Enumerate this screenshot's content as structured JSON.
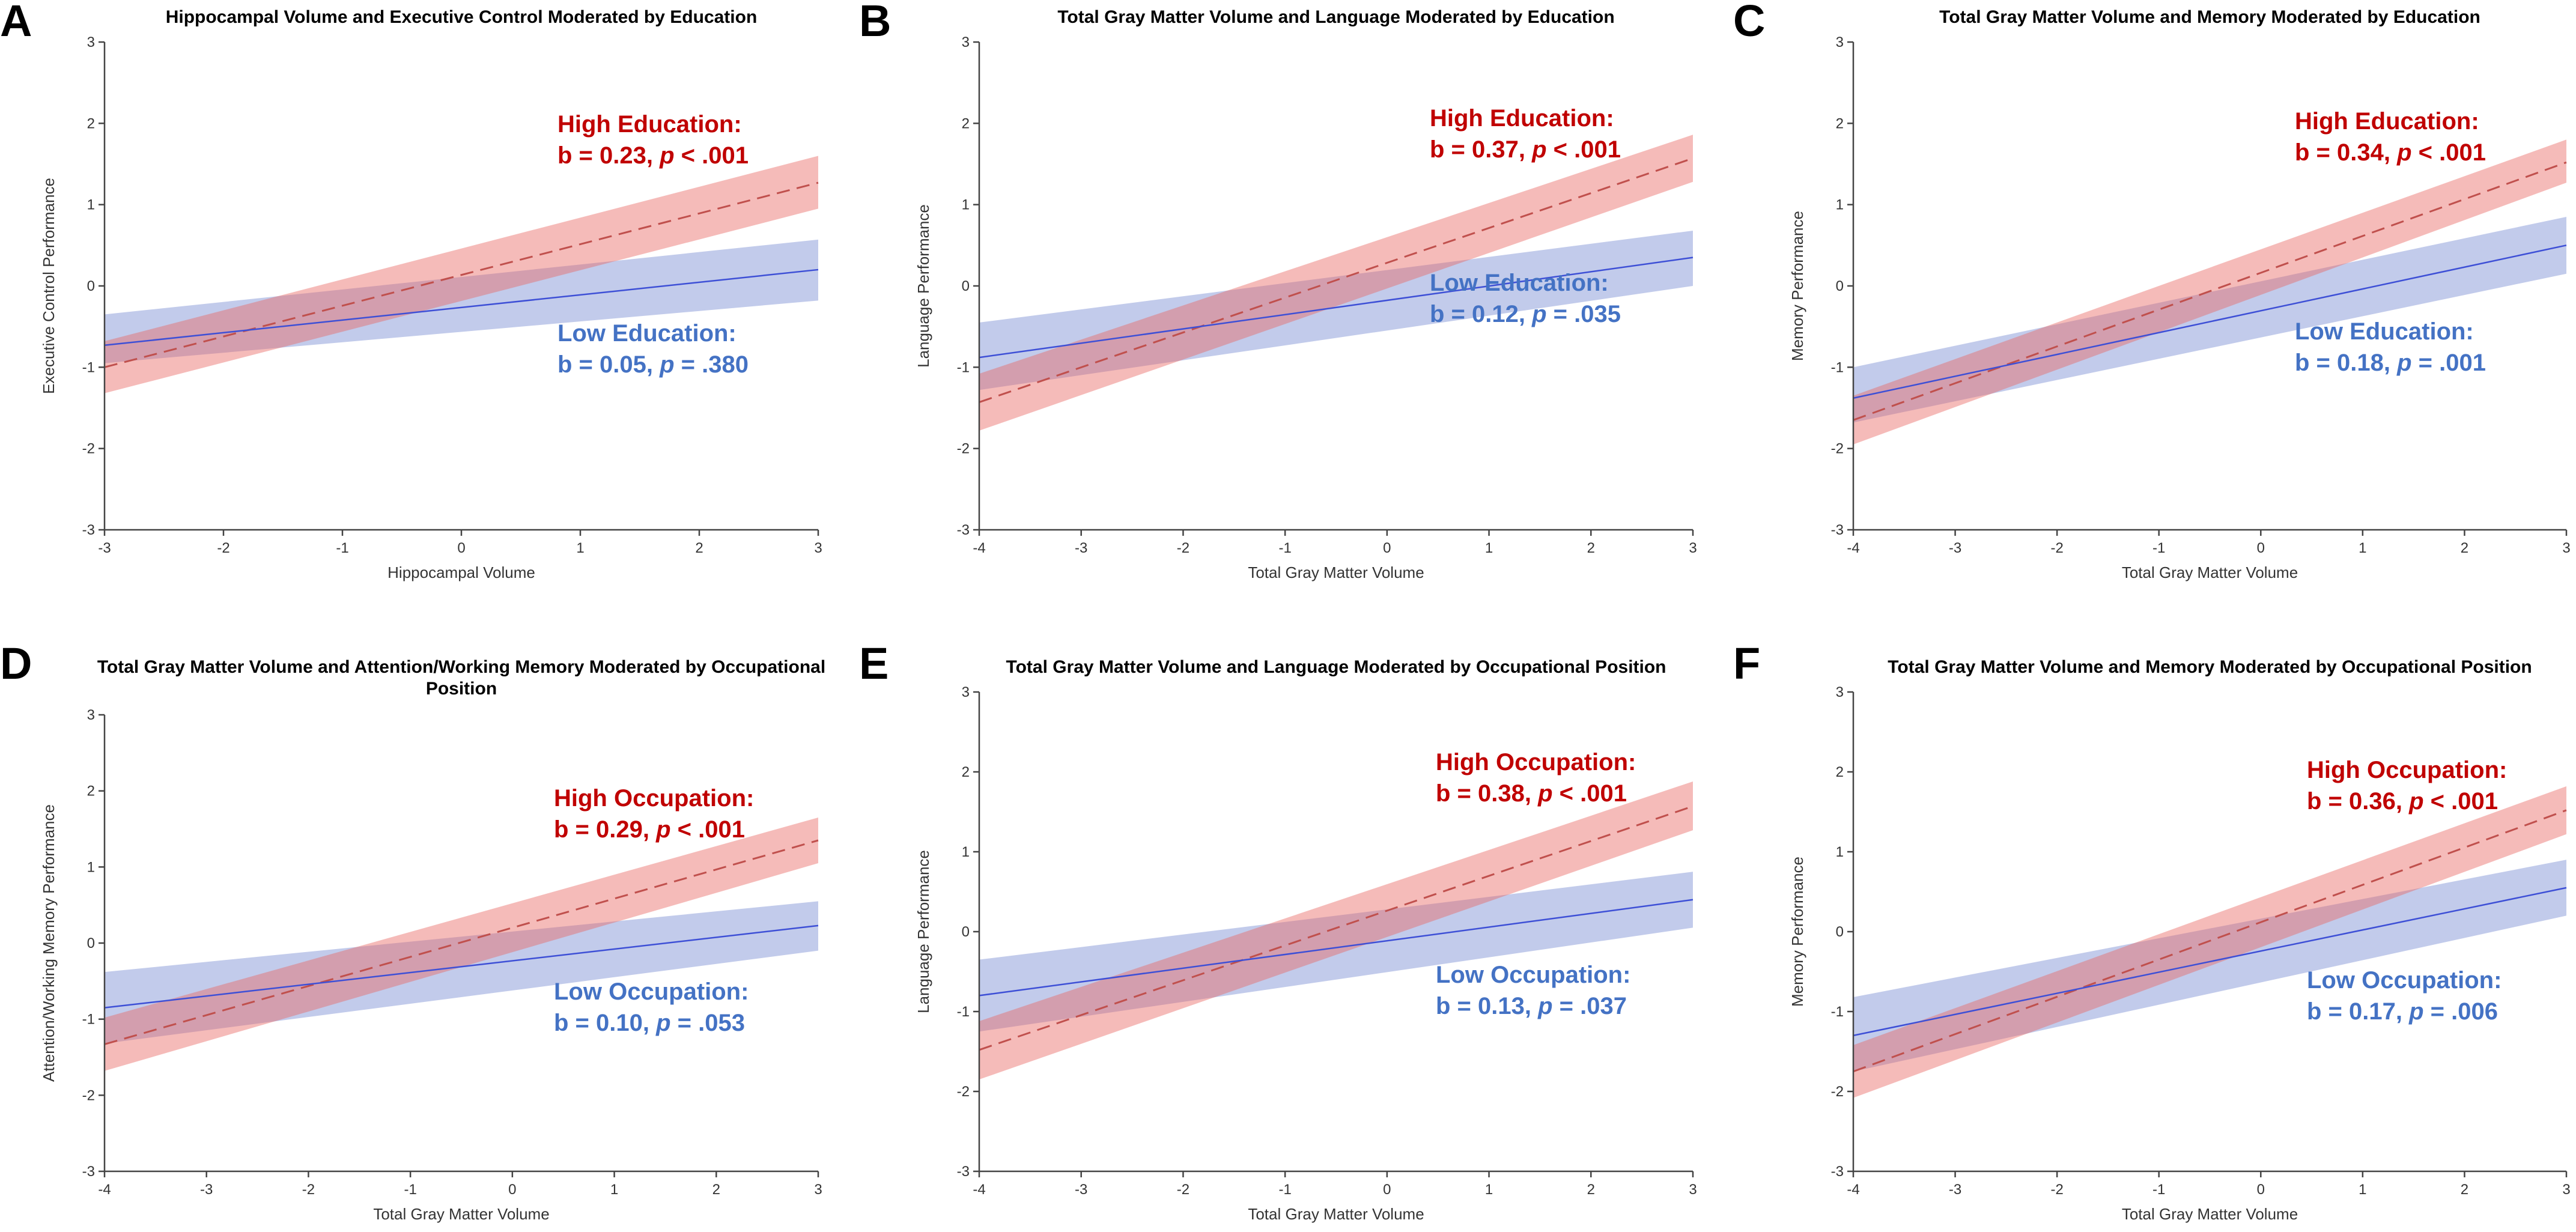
{
  "colors": {
    "high": "#c00000",
    "low": "#4472c4",
    "high_band": "#e86964",
    "low_band": "#788cd2"
  },
  "chart_data": [
    {
      "type": "line",
      "panel": "A",
      "title": [
        "Hippocampal Volume and Executive Control Moderated by Education"
      ],
      "xlabel": "Hippocampal Volume",
      "ylabel": "Executive Control Performance",
      "xlim": [
        -3,
        3
      ],
      "ylim": [
        -3,
        3
      ],
      "xticks": [
        -3,
        -2,
        -1,
        0,
        1,
        2,
        3
      ],
      "yticks": [
        -3,
        -2,
        -1,
        0,
        1,
        2,
        3
      ],
      "series": [
        {
          "name": "High Education",
          "x": [
            -3,
            3
          ],
          "y": [
            -1.0,
            1.27
          ],
          "band": [
            [
              -1.32,
              -0.68
            ],
            [
              0.95,
              1.6
            ]
          ]
        },
        {
          "name": "Low Education",
          "x": [
            -3,
            3
          ],
          "y": [
            -0.73,
            0.2
          ],
          "band": [
            [
              -0.95,
              -0.35
            ],
            [
              -0.18,
              0.57
            ]
          ]
        }
      ],
      "annotations": {
        "high_label": "High Education:",
        "high_b": "b = 0.23, ",
        "high_p": "p",
        "high_tail": " < .001",
        "low_label": "Low Education:",
        "low_b": "b = 0.05, ",
        "low_p": "p",
        "low_tail": " = .380"
      }
    },
    {
      "type": "line",
      "panel": "B",
      "title": [
        "Total Gray Matter Volume and Language Moderated by Education"
      ],
      "xlabel": "Total Gray Matter Volume",
      "ylabel": "Language Performance",
      "xlim": [
        -4,
        3
      ],
      "ylim": [
        -3,
        3
      ],
      "xticks": [
        -4,
        -3,
        -2,
        -1,
        0,
        1,
        2,
        3
      ],
      "yticks": [
        -3,
        -2,
        -1,
        0,
        1,
        2,
        3
      ],
      "series": [
        {
          "name": "High Education",
          "x": [
            -4,
            3
          ],
          "y": [
            -1.43,
            1.57
          ],
          "band": [
            [
              -1.78,
              -1.08
            ],
            [
              1.28,
              1.86
            ]
          ]
        },
        {
          "name": "Low Education",
          "x": [
            -4,
            3
          ],
          "y": [
            -0.88,
            0.35
          ],
          "band": [
            [
              -1.28,
              -0.45
            ],
            [
              0.0,
              0.68
            ]
          ]
        }
      ],
      "annotations": {
        "high_label": "High Education:",
        "high_b": "b = 0.37, ",
        "high_p": "p",
        "high_tail": " < .001",
        "low_label": "Low Education:",
        "low_b": "b = 0.12, ",
        "low_p": "p",
        "low_tail": " = .035"
      }
    },
    {
      "type": "line",
      "panel": "C",
      "title": [
        "Total Gray Matter Volume and Memory Moderated by Education"
      ],
      "xlabel": "Total Gray Matter Volume",
      "ylabel": "Memory Performance",
      "xlim": [
        -4,
        3
      ],
      "ylim": [
        -3,
        3
      ],
      "xticks": [
        -4,
        -3,
        -2,
        -1,
        0,
        1,
        2,
        3
      ],
      "yticks": [
        -3,
        -2,
        -1,
        0,
        1,
        2,
        3
      ],
      "series": [
        {
          "name": "High Education",
          "x": [
            -4,
            3
          ],
          "y": [
            -1.65,
            1.52
          ],
          "band": [
            [
              -1.95,
              -1.35
            ],
            [
              1.27,
              1.8
            ]
          ]
        },
        {
          "name": "Low Education",
          "x": [
            -4,
            3
          ],
          "y": [
            -1.38,
            0.5
          ],
          "band": [
            [
              -1.68,
              -1.0
            ],
            [
              0.15,
              0.85
            ]
          ]
        }
      ],
      "annotations": {
        "high_label": "High Education:",
        "high_b": "b = 0.34, ",
        "high_p": "p",
        "high_tail": " < .001",
        "low_label": "Low Education:",
        "low_b": "b = 0.18, ",
        "low_p": "p",
        "low_tail": " = .001"
      }
    },
    {
      "type": "line",
      "panel": "D",
      "title": [
        "Total Gray Matter Volume and Attention/Working Memory Moderated by Occupational",
        "Position"
      ],
      "xlabel": "Total Gray Matter Volume",
      "ylabel": "Attention/Working Memory Performance",
      "xlim": [
        -4,
        3
      ],
      "ylim": [
        -3,
        3
      ],
      "xticks": [
        -4,
        -3,
        -2,
        -1,
        0,
        1,
        2,
        3
      ],
      "yticks": [
        -3,
        -2,
        -1,
        0,
        1,
        2,
        3
      ],
      "series": [
        {
          "name": "High Occupation",
          "x": [
            -4,
            3
          ],
          "y": [
            -1.33,
            1.35
          ],
          "band": [
            [
              -1.68,
              -0.98
            ],
            [
              1.05,
              1.65
            ]
          ]
        },
        {
          "name": "Low Occupation",
          "x": [
            -4,
            3
          ],
          "y": [
            -0.85,
            0.23
          ],
          "band": [
            [
              -1.32,
              -0.38
            ],
            [
              -0.1,
              0.55
            ]
          ]
        }
      ],
      "annotations": {
        "high_label": "High Occupation:",
        "high_b": "b = 0.29, ",
        "high_p": "p",
        "high_tail": " < .001",
        "low_label": "Low Occupation:",
        "low_b": "b = 0.10, ",
        "low_p": "p",
        "low_tail": " = .053"
      }
    },
    {
      "type": "line",
      "panel": "E",
      "title": [
        "Total Gray Matter Volume and Language Moderated by Occupational Position"
      ],
      "xlabel": "Total Gray Matter Volume",
      "ylabel": "Language Performance",
      "xlim": [
        -4,
        3
      ],
      "ylim": [
        -3,
        3
      ],
      "xticks": [
        -4,
        -3,
        -2,
        -1,
        0,
        1,
        2,
        3
      ],
      "yticks": [
        -3,
        -2,
        -1,
        0,
        1,
        2,
        3
      ],
      "series": [
        {
          "name": "High Occupation",
          "x": [
            -4,
            3
          ],
          "y": [
            -1.48,
            1.57
          ],
          "band": [
            [
              -1.85,
              -1.12
            ],
            [
              1.27,
              1.88
            ]
          ]
        },
        {
          "name": "Low Occupation",
          "x": [
            -4,
            3
          ],
          "y": [
            -0.8,
            0.4
          ],
          "band": [
            [
              -1.25,
              -0.35
            ],
            [
              0.05,
              0.75
            ]
          ]
        }
      ],
      "annotations": {
        "high_label": "High Occupation:",
        "high_b": "b = 0.38, ",
        "high_p": "p",
        "high_tail": " < .001",
        "low_label": "Low Occupation:",
        "low_b": "b = 0.13, ",
        "low_p": "p",
        "low_tail": " = .037"
      }
    },
    {
      "type": "line",
      "panel": "F",
      "title": [
        "Total Gray Matter Volume and Memory Moderated by Occupational Position"
      ],
      "xlabel": "Total Gray Matter Volume",
      "ylabel": "Memory Performance",
      "xlim": [
        -4,
        3
      ],
      "ylim": [
        -3,
        3
      ],
      "xticks": [
        -4,
        -3,
        -2,
        -1,
        0,
        1,
        2,
        3
      ],
      "yticks": [
        -3,
        -2,
        -1,
        0,
        1,
        2,
        3
      ],
      "series": [
        {
          "name": "High Occupation",
          "x": [
            -4,
            3
          ],
          "y": [
            -1.75,
            1.52
          ],
          "band": [
            [
              -2.08,
              -1.42
            ],
            [
              1.22,
              1.82
            ]
          ]
        },
        {
          "name": "Low Occupation",
          "x": [
            -4,
            3
          ],
          "y": [
            -1.3,
            0.55
          ],
          "band": [
            [
              -1.75,
              -0.82
            ],
            [
              0.2,
              0.9
            ]
          ]
        }
      ],
      "annotations": {
        "high_label": "High Occupation:",
        "high_b": "b = 0.36, ",
        "high_p": "p",
        "high_tail": " < .001",
        "low_label": "Low Occupation:",
        "low_b": "b = 0.17, ",
        "low_p": "p",
        "low_tail": " = .006"
      }
    }
  ]
}
